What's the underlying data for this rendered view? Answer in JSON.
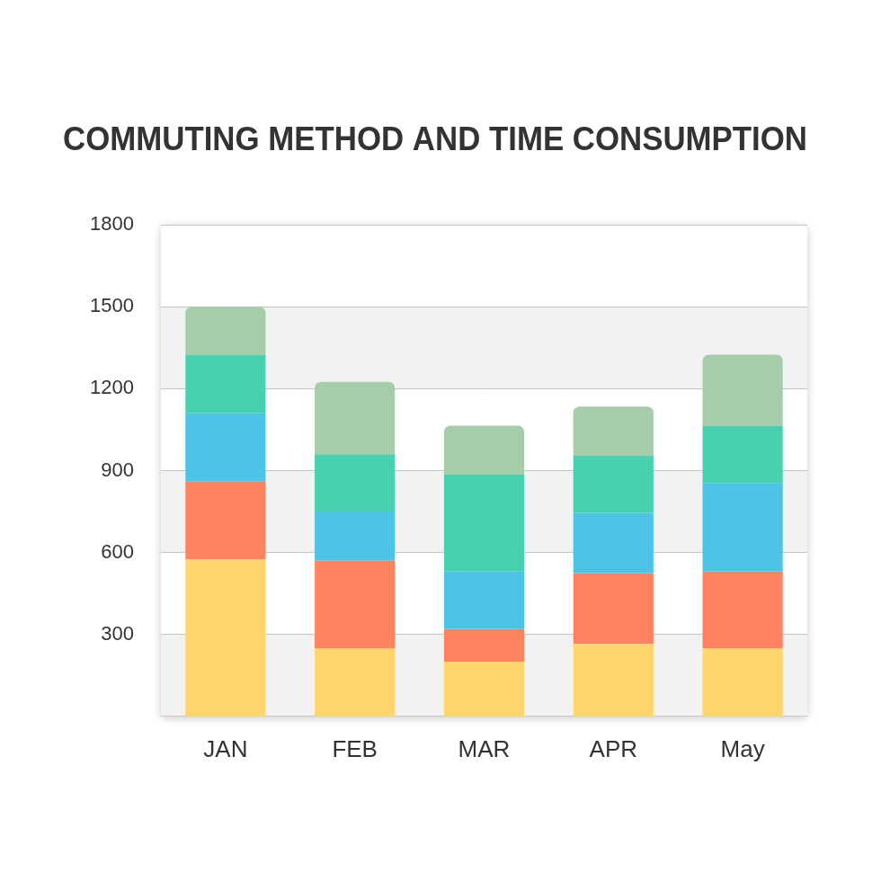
{
  "chart_data": {
    "type": "bar",
    "title": "COMMUTING METHOD AND TIME CONSUMPTION",
    "categories": [
      "JAN",
      "FEB",
      "MAR",
      "APR",
      "May"
    ],
    "stacked": true,
    "grid": true,
    "series": [
      {
        "color": "#FFD66B",
        "values": [
          575,
          250,
          200,
          265,
          250
        ]
      },
      {
        "color": "#FF8360",
        "values": [
          285,
          320,
          120,
          260,
          280
        ]
      },
      {
        "color": "#4DC3E8",
        "values": [
          250,
          180,
          210,
          220,
          325
        ]
      },
      {
        "color": "#48D1B0",
        "values": [
          215,
          210,
          355,
          210,
          210
        ]
      },
      {
        "color": "#A5CDAA",
        "values": [
          175,
          265,
          180,
          180,
          260
        ]
      }
    ],
    "ylim": [
      0,
      1800
    ],
    "yticks": [
      300,
      600,
      900,
      1200,
      1500,
      1800
    ]
  }
}
